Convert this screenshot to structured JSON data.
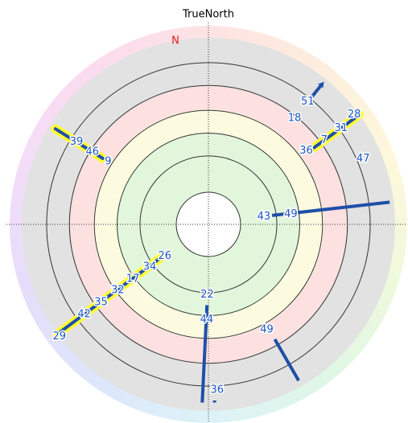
{
  "chart_data": {
    "type": "skyplot",
    "title": "TrueNorth",
    "north_label": "N",
    "rlim": [
      0,
      90
    ],
    "rings": [
      12,
      23,
      35,
      46,
      57
    ],
    "tracks": [
      {
        "points": [
          [
            39,
            3
          ],
          [
            39,
            11
          ]
        ],
        "highlight": false,
        "arrow": true
      },
      {
        "points": [
          [
            54,
            0
          ],
          [
            54,
            27
          ]
        ],
        "highlight": true,
        "arrow": false
      },
      {
        "points": [
          [
            83,
            2
          ],
          [
            82,
            59
          ]
        ],
        "highlight": false,
        "arrow": false
      },
      {
        "points": [
          [
            302,
            3
          ],
          [
            302,
            30
          ]
        ],
        "highlight": true,
        "arrow": false
      },
      {
        "points": [
          [
            235,
            62
          ],
          [
            234,
            0
          ]
        ],
        "highlight": true,
        "arrow": false
      },
      {
        "points": [
          [
            181,
            51
          ],
          [
            182,
            4
          ]
        ],
        "highlight": false,
        "arrow": false
      },
      {
        "points": [
          [
            178,
            5
          ],
          [
            178,
            4
          ]
        ],
        "highlight": false,
        "arrow": false
      },
      {
        "points": [
          [
            150,
            26
          ],
          [
            150,
            3
          ]
        ],
        "highlight": false,
        "arrow": false
      }
    ],
    "labels": [
      {
        "text": "51",
        "az": 39,
        "el": 14
      },
      {
        "text": "18",
        "az": 39,
        "el": 24
      },
      {
        "text": "28",
        "az": 53,
        "el": 2
      },
      {
        "text": "31",
        "az": 54,
        "el": 11
      },
      {
        "text": "7",
        "az": 54,
        "el": 21
      },
      {
        "text": "36",
        "az": 53,
        "el": 31
      },
      {
        "text": "47",
        "az": 67,
        "el": 9
      },
      {
        "text": "43",
        "az": 82,
        "el": 63
      },
      {
        "text": "49",
        "az": 83,
        "el": 50
      },
      {
        "text": "39",
        "az": 302,
        "el": 15
      },
      {
        "text": "46",
        "az": 302,
        "el": 24
      },
      {
        "text": "9",
        "az": 302,
        "el": 33
      },
      {
        "text": "26",
        "az": 234,
        "el": 64
      },
      {
        "text": "34",
        "az": 234,
        "el": 55
      },
      {
        "text": "17",
        "az": 234,
        "el": 45
      },
      {
        "text": "32",
        "az": 234,
        "el": 36
      },
      {
        "text": "35",
        "az": 234,
        "el": 26
      },
      {
        "text": "42",
        "az": 234,
        "el": 16
      },
      {
        "text": "29",
        "az": 233,
        "el": 0
      },
      {
        "text": "22",
        "az": 181,
        "el": 56
      },
      {
        "text": "44",
        "az": 181,
        "el": 44
      },
      {
        "text": "36",
        "az": 177,
        "el": 10
      },
      {
        "text": "49",
        "az": 151,
        "el": 32
      }
    ]
  }
}
